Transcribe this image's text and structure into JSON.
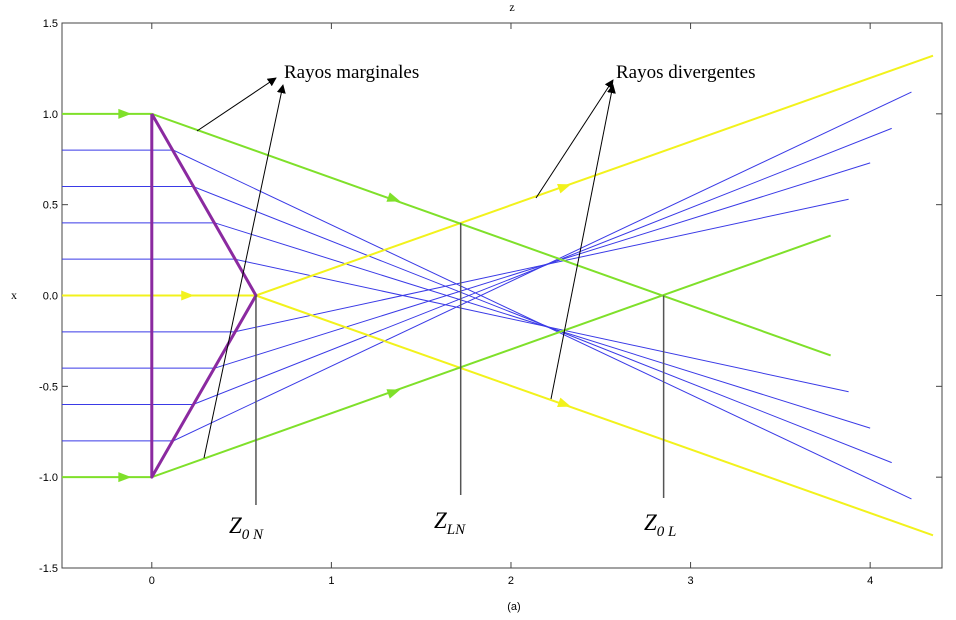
{
  "chart_data": {
    "type": "line",
    "title": "z",
    "xlabel": "x",
    "caption": "(a)",
    "xlim": [
      -0.5,
      4.4
    ],
    "ylim": [
      -1.5,
      1.5
    ],
    "x_ticks": [
      "0",
      "1",
      "2",
      "3",
      "4"
    ],
    "y_ticks": [
      "1.5",
      "1.0",
      "0.5",
      "0.0",
      "-0.5",
      "-1.0",
      "-1.5"
    ],
    "annotations": {
      "marginal": "Rayos marginales",
      "divergent": "Rayos divergentes",
      "z0n": {
        "main": "Z",
        "sub": "0 N"
      },
      "zln": {
        "main": "Z",
        "sub": "LN"
      },
      "z0l": {
        "main": "Z",
        "sub": "0 L"
      }
    },
    "markers": [
      {
        "name": "Z0N",
        "z": 0.58
      },
      {
        "name": "ZLN",
        "z": 1.72
      },
      {
        "name": "Z0L",
        "z": 2.85
      }
    ],
    "lens_outline": [
      [
        0,
        1.0
      ],
      [
        0,
        -1.0
      ],
      [
        0.58,
        0.0
      ],
      [
        0,
        1.0
      ]
    ],
    "rays": [
      {
        "color": "green",
        "points": [
          [
            -0.5,
            1.0
          ],
          [
            0,
            1.0
          ],
          [
            3.78,
            -0.33
          ]
        ]
      },
      {
        "color": "green",
        "points": [
          [
            -0.5,
            -1.0
          ],
          [
            0,
            -1.0
          ],
          [
            3.78,
            0.33
          ]
        ]
      },
      {
        "color": "yellow",
        "points": [
          [
            -0.5,
            0.0
          ],
          [
            0.58,
            0.0
          ],
          [
            4.35,
            1.32
          ]
        ]
      },
      {
        "color": "yellow",
        "points": [
          [
            0.58,
            0.0
          ],
          [
            4.35,
            -1.32
          ]
        ]
      },
      {
        "color": "blue",
        "points": [
          [
            -0.5,
            0.8
          ],
          [
            0.12,
            0.8
          ],
          [
            4.23,
            -1.12
          ]
        ]
      },
      {
        "color": "blue",
        "points": [
          [
            -0.5,
            0.6
          ],
          [
            0.23,
            0.6
          ],
          [
            4.12,
            -0.92
          ]
        ]
      },
      {
        "color": "blue",
        "points": [
          [
            -0.5,
            0.4
          ],
          [
            0.35,
            0.4
          ],
          [
            4.0,
            -0.73
          ]
        ]
      },
      {
        "color": "blue",
        "points": [
          [
            -0.5,
            0.2
          ],
          [
            0.46,
            0.2
          ],
          [
            3.88,
            -0.53
          ]
        ]
      },
      {
        "color": "blue",
        "points": [
          [
            -0.5,
            -0.2
          ],
          [
            0.46,
            -0.2
          ],
          [
            3.88,
            0.53
          ]
        ]
      },
      {
        "color": "blue",
        "points": [
          [
            -0.5,
            -0.4
          ],
          [
            0.35,
            -0.4
          ],
          [
            4.0,
            0.73
          ]
        ]
      },
      {
        "color": "blue",
        "points": [
          [
            -0.5,
            -0.6
          ],
          [
            0.23,
            -0.6
          ],
          [
            4.12,
            0.92
          ]
        ]
      },
      {
        "color": "blue",
        "points": [
          [
            -0.5,
            -0.8
          ],
          [
            0.12,
            -0.8
          ],
          [
            4.23,
            1.12
          ]
        ]
      }
    ],
    "ray_arrows": [
      {
        "color": "green",
        "z": -0.15,
        "x": 1.0,
        "dir": 0
      },
      {
        "color": "green",
        "z": -0.15,
        "x": -1.0,
        "dir": 0
      },
      {
        "color": "yellow",
        "z": 0.2,
        "x": 0.0,
        "dir": 0
      },
      {
        "color": "green",
        "z": 1.35,
        "x": 0.53,
        "dir": -1
      },
      {
        "color": "green",
        "z": 1.35,
        "x": -0.53,
        "dir": 1
      },
      {
        "color": "yellow",
        "z": 2.3,
        "x": 0.6,
        "dir": 1
      },
      {
        "color": "yellow",
        "z": 2.3,
        "x": -0.6,
        "dir": -1
      }
    ],
    "colors": {
      "green": "#7fe02a",
      "yellow": "#f2f21c",
      "blue": "#3a3ae6",
      "lens": "#8b2aa0",
      "marker": "#555555"
    }
  }
}
